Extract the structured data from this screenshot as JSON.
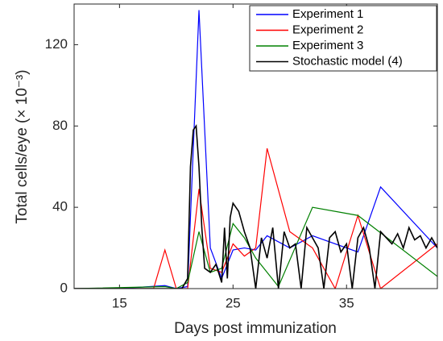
{
  "chart_data": {
    "type": "line",
    "xlabel": "Days post immunization",
    "ylabel": "Total cells/eye (× 10⁻³)",
    "xlim": [
      11,
      43
    ],
    "ylim": [
      0,
      140
    ],
    "xticks": [
      15,
      25,
      35
    ],
    "yticks": [
      0,
      40,
      80,
      120
    ],
    "legend": "upper right",
    "series": [
      {
        "name": "Experiment 1",
        "color": "#0000ff",
        "x": [
          11,
          15,
          19,
          20,
          21,
          22,
          23,
          24,
          25,
          26,
          27,
          28,
          30,
          32,
          36,
          38,
          43
        ],
        "values": [
          0,
          0,
          1.5,
          0,
          1,
          137,
          20,
          5,
          19,
          20,
          19,
          26,
          20,
          26,
          18,
          50,
          20
        ]
      },
      {
        "name": "Experiment 2",
        "color": "#ff0000",
        "x": [
          11,
          18,
          19,
          20,
          21,
          22,
          23,
          24,
          25,
          26,
          27,
          28,
          30,
          32,
          34,
          36,
          38,
          43
        ],
        "values": [
          0,
          0,
          19,
          0,
          0,
          49,
          10,
          8,
          22,
          16,
          20,
          69,
          28,
          20,
          0,
          36,
          0,
          22
        ]
      },
      {
        "name": "Experiment 3",
        "color": "#008000",
        "x": [
          11,
          19,
          20,
          21,
          22,
          23,
          24,
          25,
          26,
          27,
          29,
          32,
          36,
          43
        ],
        "values": [
          0,
          1,
          0,
          3,
          28,
          8,
          10,
          32,
          25,
          15,
          1,
          40,
          36,
          6
        ]
      },
      {
        "name": "Stochastic model (4)",
        "color": "#000000",
        "x": [
          11,
          20.5,
          21,
          21.25,
          21.5,
          21.75,
          22,
          22.25,
          22.5,
          23,
          23.5,
          24,
          24.25,
          24.5,
          24.75,
          25,
          25.5,
          26,
          26.5,
          27,
          27.5,
          28,
          28.5,
          29,
          29.5,
          30,
          30.5,
          31,
          31.5,
          32,
          32.5,
          33,
          33.5,
          34,
          34.5,
          35,
          35.5,
          36,
          36.5,
          37,
          37.5,
          38,
          38.5,
          39,
          39.5,
          40,
          40.5,
          41,
          41.5,
          42,
          42.5,
          43
        ],
        "values": [
          0,
          0,
          5,
          60,
          78,
          80,
          60,
          30,
          10,
          8,
          12,
          3,
          30,
          5,
          35,
          42,
          38,
          28,
          20,
          0,
          25,
          15,
          30,
          0,
          28,
          20,
          22,
          0,
          30,
          25,
          20,
          0,
          25,
          28,
          18,
          22,
          0,
          25,
          30,
          20,
          0,
          28,
          25,
          22,
          27,
          20,
          30,
          24,
          26,
          20,
          25,
          20
        ]
      }
    ]
  }
}
